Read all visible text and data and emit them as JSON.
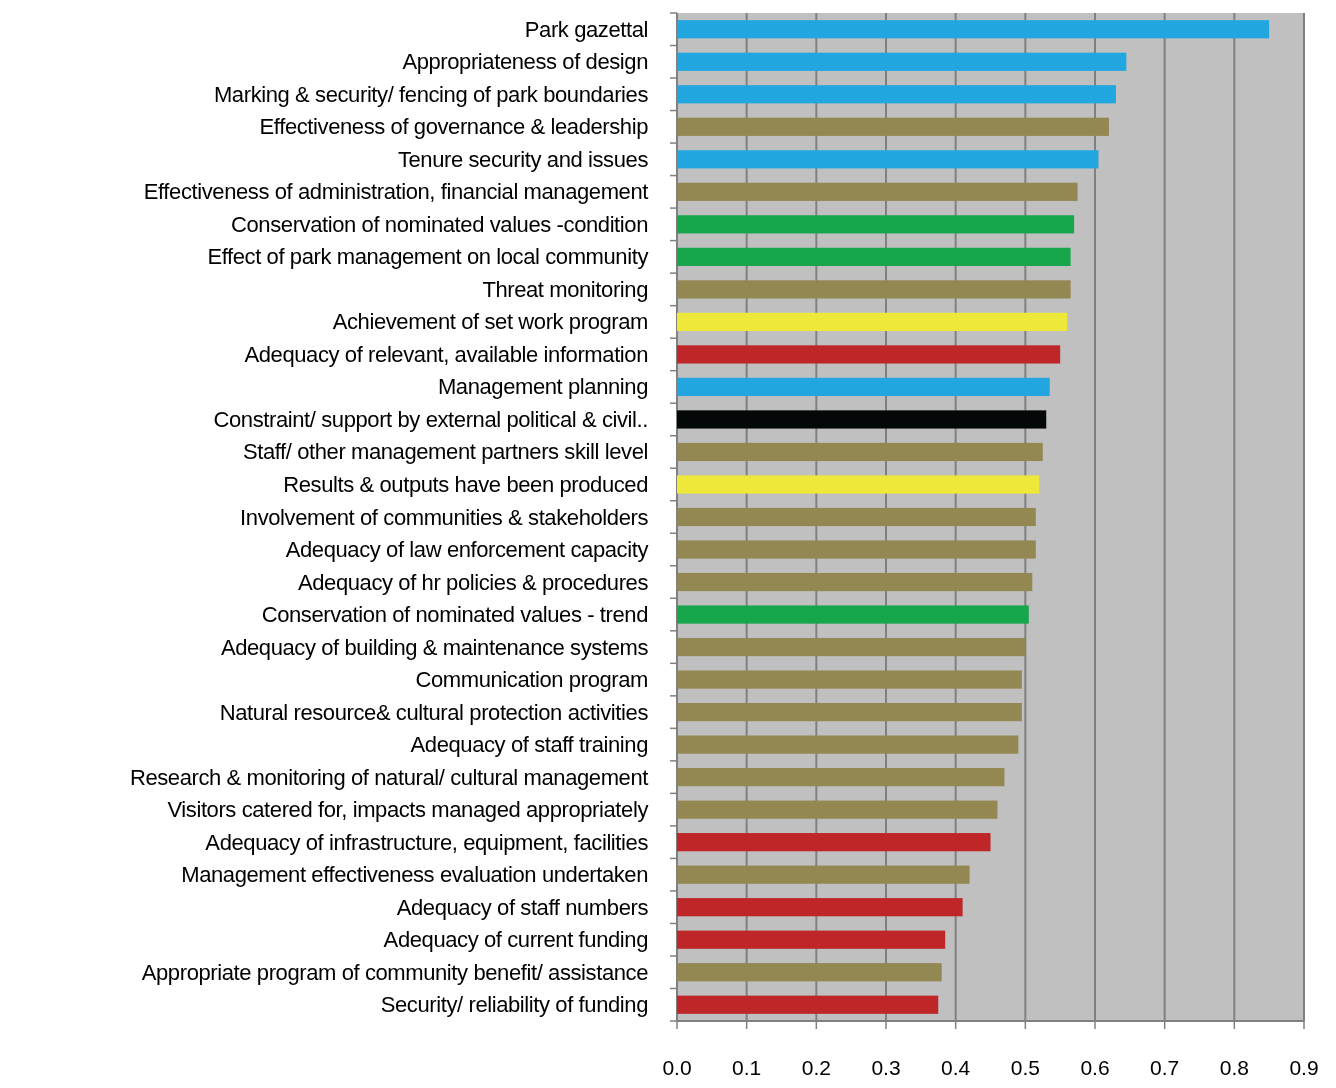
{
  "chart_data": {
    "type": "bar",
    "orientation": "horizontal",
    "categories": [
      "Park gazettal",
      "Appropriateness of design",
      "Marking & security/ fencing of park boundaries",
      "Effectiveness of governance & leadership",
      "Tenure security and issues",
      "Effectiveness of administration, financial management",
      "Conservation of nominated values -condition",
      "Effect of park management on local community",
      "Threat monitoring",
      "Achievement of set work program",
      "Adequacy of relevant, available information",
      "Management planning",
      "Constraint/ support by external political & civil..",
      "Staff/ other management partners skill level",
      "Results & outputs have been produced",
      "Involvement of communities & stakeholders",
      "Adequacy of law enforcement capacity",
      "Adequacy of hr policies & procedures",
      "Conservation of nominated values - trend",
      "Adequacy of building & maintenance systems",
      "Communication program",
      "Natural resource& cultural protection activities",
      "Adequacy of staff training",
      "Research & monitoring of natural/ cultural management",
      "Visitors catered for, impacts managed appropriately",
      "Adequacy of infrastructure, equipment, facilities",
      "Management effectiveness evaluation undertaken",
      "Adequacy of staff numbers",
      "Adequacy of current funding",
      "Appropriate program of community benefit/ assistance",
      "Security/ reliability of funding"
    ],
    "values": [
      0.85,
      0.645,
      0.63,
      0.62,
      0.605,
      0.575,
      0.57,
      0.565,
      0.565,
      0.56,
      0.55,
      0.535,
      0.53,
      0.525,
      0.52,
      0.515,
      0.515,
      0.51,
      0.505,
      0.5,
      0.495,
      0.495,
      0.49,
      0.47,
      0.46,
      0.45,
      0.42,
      0.41,
      0.385,
      0.38,
      0.375
    ],
    "colors": [
      "#21a6e0",
      "#21a6e0",
      "#21a6e0",
      "#938852",
      "#21a6e0",
      "#938852",
      "#18a64c",
      "#18a64c",
      "#938852",
      "#eee83a",
      "#be2628",
      "#21a6e0",
      "#050808",
      "#938852",
      "#eee83a",
      "#938852",
      "#938852",
      "#938852",
      "#18a64c",
      "#938852",
      "#938852",
      "#938852",
      "#938852",
      "#938852",
      "#938852",
      "#be2628",
      "#938852",
      "#be2628",
      "#be2628",
      "#938852",
      "#be2628"
    ],
    "xlim": [
      0,
      0.9
    ],
    "xticks": [
      {
        "value": 0,
        "label": "0.0"
      },
      0.1,
      0.2,
      0.3,
      0.4,
      0.5,
      0.6,
      0.7,
      0.8,
      0.9
    ],
    "grid": "x"
  }
}
